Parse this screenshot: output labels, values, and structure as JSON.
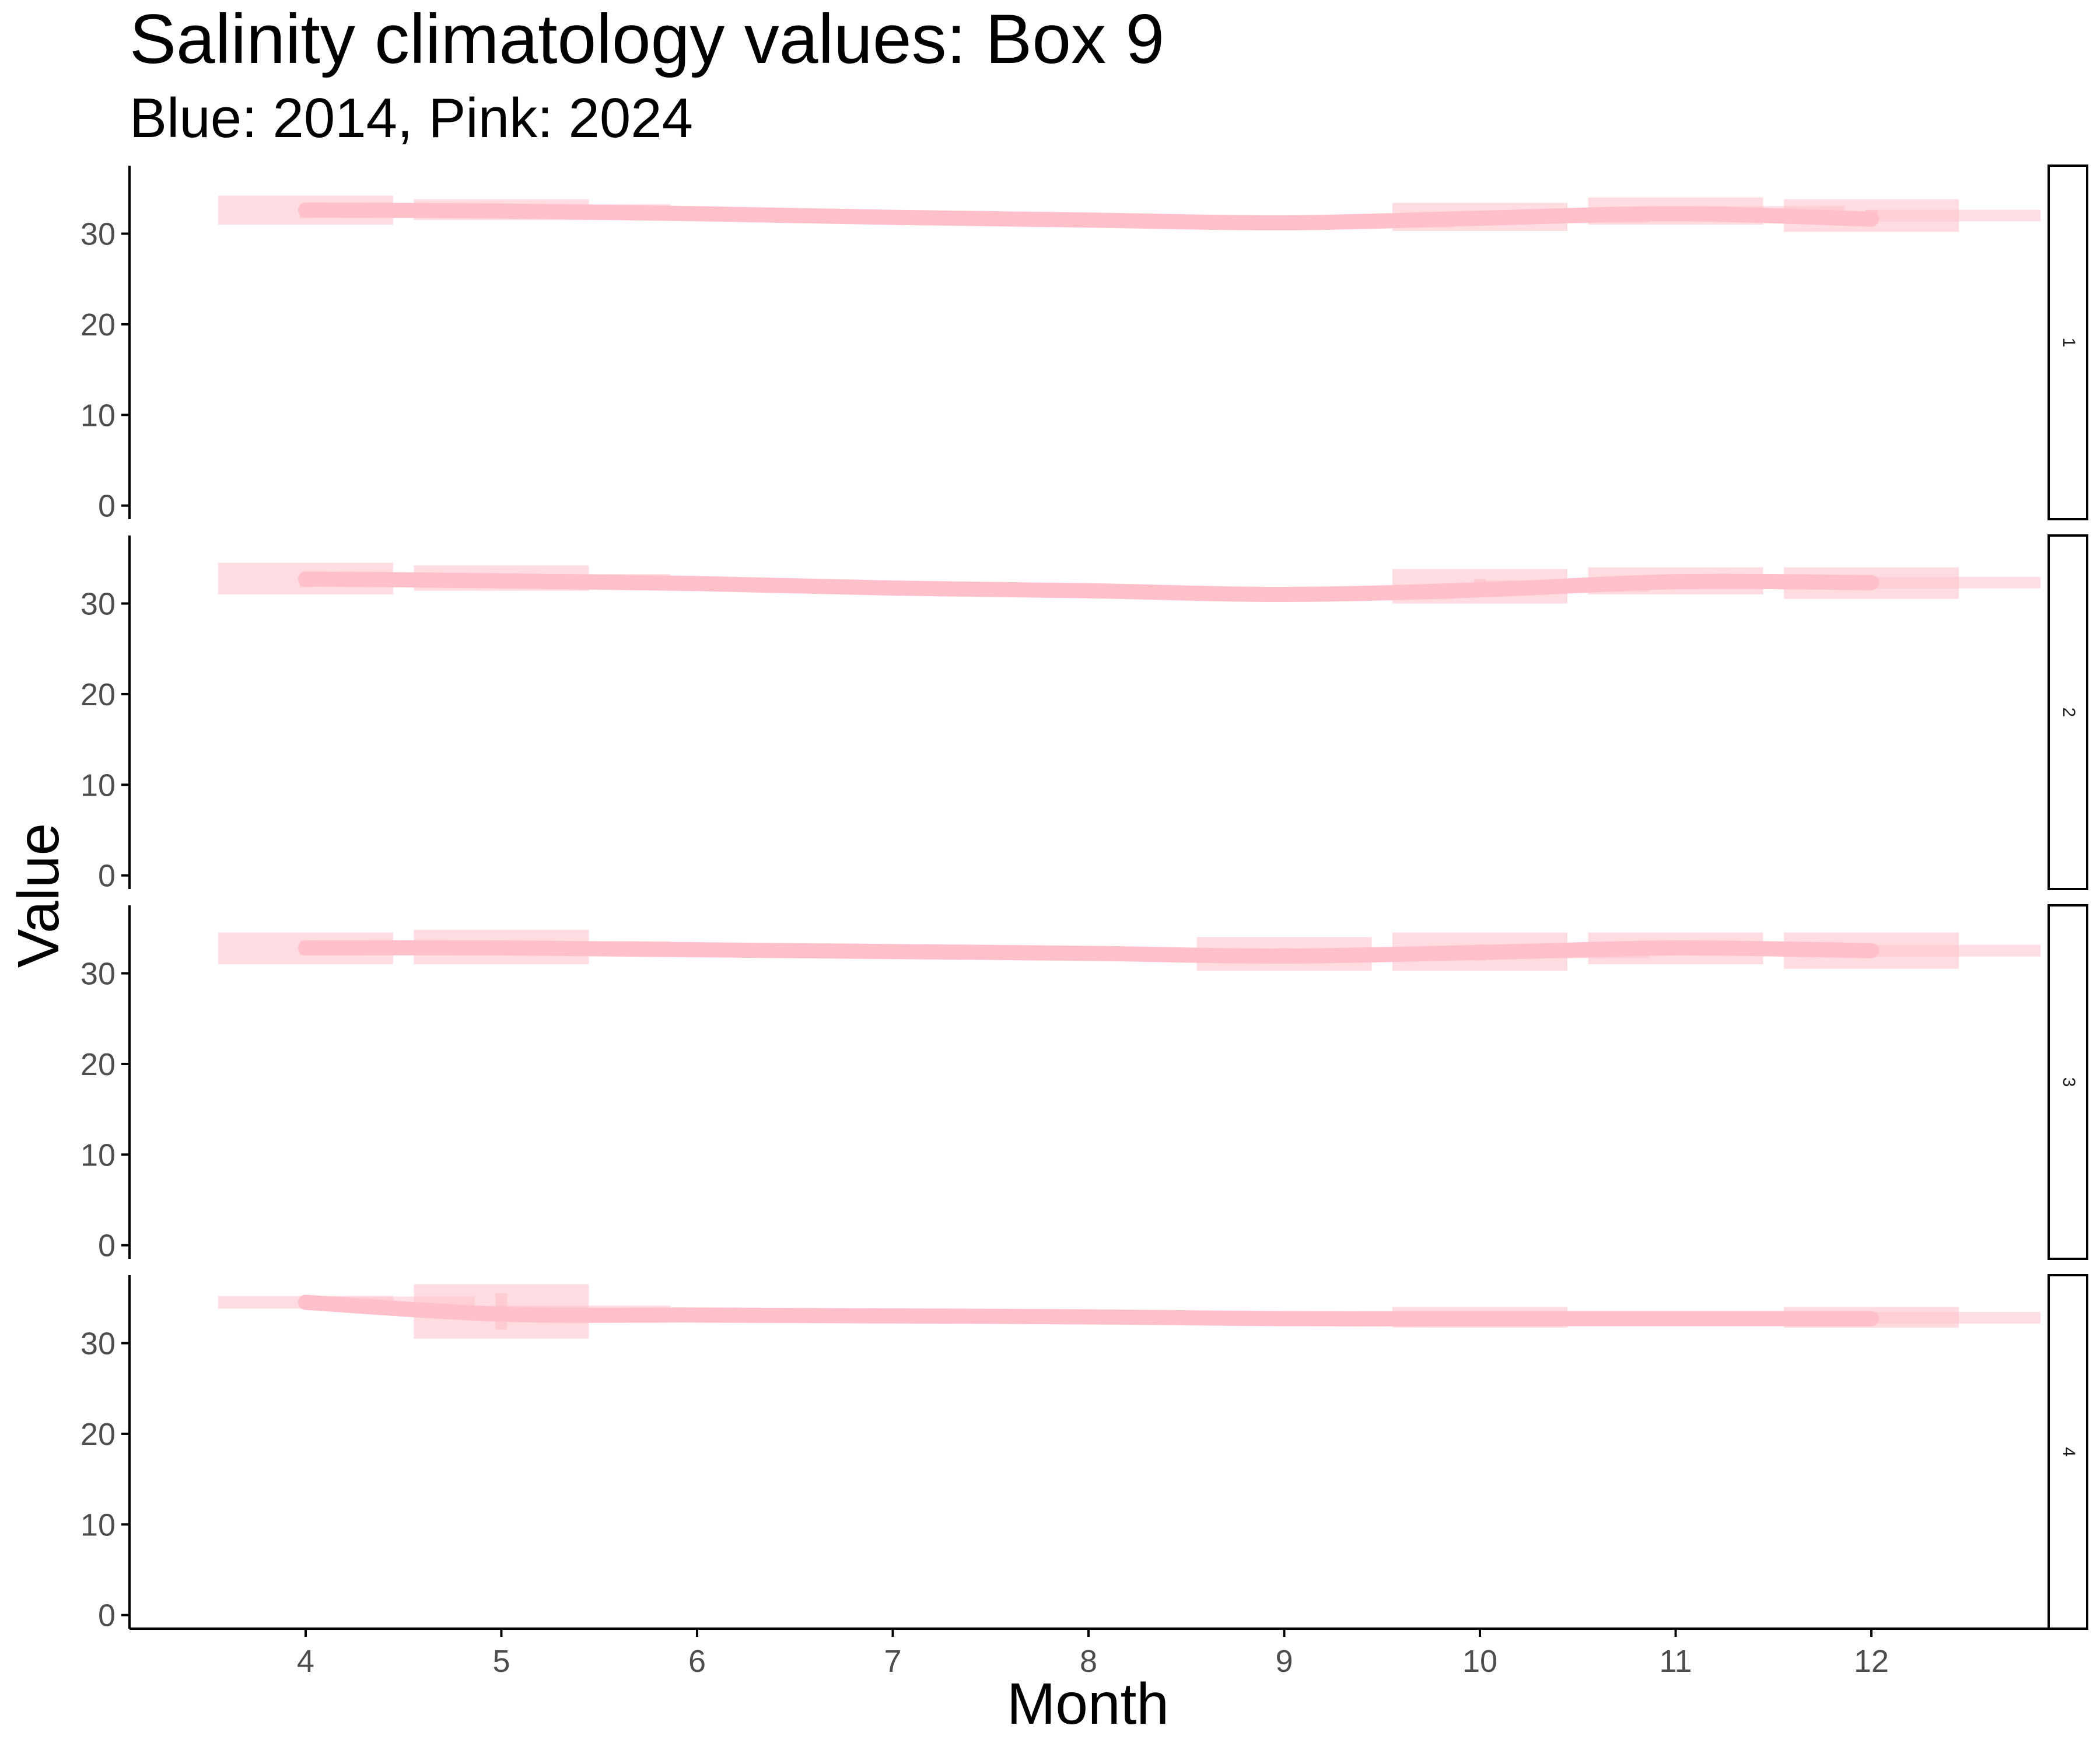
{
  "chart_data": {
    "type": "line",
    "title": "Salinity climatology values: Box 9",
    "subtitle": "Blue: 2014, Pink: 2024",
    "xlabel": "Month",
    "ylabel": "Value",
    "xlim": [
      3.1,
      12.9
    ],
    "x_ticks": [
      4,
      5,
      6,
      7,
      8,
      9,
      10,
      11,
      12
    ],
    "ylim": [
      -1.5,
      37.5
    ],
    "y_ticks": [
      0,
      10,
      20,
      30
    ],
    "grid": false,
    "legend": "none",
    "colors": {
      "line": "#ffc0cb",
      "band": "#ffc0cb",
      "axis": "#000000",
      "tick_text": "#4d4d4d"
    },
    "facets": [
      {
        "label": "1",
        "line": {
          "x": [
            4,
            5,
            6,
            7,
            8,
            9,
            10,
            11,
            12
          ],
          "y": [
            32.6,
            32.5,
            32.2,
            31.8,
            31.5,
            31.2,
            31.7,
            32.2,
            31.6
          ]
        },
        "boxes": [
          {
            "x": 4,
            "low": 31.0,
            "high": 34.2,
            "mid": 32.5,
            "error": 0.8
          },
          {
            "x": 5,
            "low": 31.5,
            "high": 33.8,
            "mid": 32.6,
            "error": 0.5
          },
          {
            "x": 9,
            "low": 31.2,
            "high": 31.6,
            "mid": 31.3,
            "error": 0.2
          },
          {
            "x": 10,
            "low": 30.3,
            "high": 33.4,
            "mid": 31.8,
            "error": 0.7
          },
          {
            "x": 11,
            "low": 31.0,
            "high": 34.0,
            "mid": 32.4,
            "error": 0.6
          },
          {
            "x": 12,
            "low": 30.2,
            "high": 33.8,
            "mid": 32.0,
            "error": 0.6
          }
        ]
      },
      {
        "label": "2",
        "line": {
          "x": [
            4,
            5,
            6,
            7,
            8,
            9,
            10,
            11,
            12
          ],
          "y": [
            32.7,
            32.5,
            32.2,
            31.7,
            31.4,
            31.0,
            31.5,
            32.4,
            32.3
          ]
        },
        "boxes": [
          {
            "x": 4,
            "low": 31.0,
            "high": 34.5,
            "mid": 32.6,
            "error": 0.8
          },
          {
            "x": 5,
            "low": 31.4,
            "high": 34.2,
            "mid": 32.6,
            "error": 0.5
          },
          {
            "x": 9,
            "low": 30.9,
            "high": 31.3,
            "mid": 31.1,
            "error": 0.2
          },
          {
            "x": 10,
            "low": 30.0,
            "high": 33.8,
            "mid": 31.9,
            "error": 0.8
          },
          {
            "x": 11,
            "low": 31.0,
            "high": 34.0,
            "mid": 32.4,
            "error": 0.6
          },
          {
            "x": 12,
            "low": 30.5,
            "high": 34.0,
            "mid": 32.3,
            "error": 0.6
          }
        ]
      },
      {
        "label": "3",
        "line": {
          "x": [
            4,
            5,
            6,
            7,
            8,
            9,
            10,
            11,
            12
          ],
          "y": [
            32.8,
            32.8,
            32.6,
            32.4,
            32.2,
            31.9,
            32.3,
            32.8,
            32.5
          ]
        },
        "boxes": [
          {
            "x": 4,
            "low": 31.0,
            "high": 34.5,
            "mid": 32.8,
            "error": 0.8
          },
          {
            "x": 5,
            "low": 31.0,
            "high": 34.8,
            "mid": 32.9,
            "error": 0.6
          },
          {
            "x": 9,
            "low": 30.3,
            "high": 34.0,
            "mid": 32.0,
            "error": 0.8
          },
          {
            "x": 10,
            "low": 30.3,
            "high": 34.5,
            "mid": 32.3,
            "error": 0.9
          },
          {
            "x": 11,
            "low": 31.0,
            "high": 34.5,
            "mid": 32.8,
            "error": 0.6
          },
          {
            "x": 12,
            "low": 30.5,
            "high": 34.5,
            "mid": 32.5,
            "error": 0.6
          }
        ]
      },
      {
        "label": "4",
        "line": {
          "x": [
            4,
            5,
            6,
            7,
            8,
            9,
            10,
            11,
            12
          ],
          "y": [
            34.5,
            33.2,
            33.1,
            33.0,
            32.9,
            32.7,
            32.7,
            32.7,
            32.7
          ]
        },
        "boxes": [
          {
            "x": 4,
            "low": 33.8,
            "high": 35.2,
            "mid": 34.5,
            "error": 0.3
          },
          {
            "x": 5,
            "low": 30.5,
            "high": 36.5,
            "mid": 33.5,
            "error": 2.0
          },
          {
            "x": 10,
            "low": 31.7,
            "high": 34.0,
            "mid": 32.8,
            "error": 0.3
          },
          {
            "x": 12,
            "low": 31.7,
            "high": 34.0,
            "mid": 32.8,
            "error": 0.3
          }
        ]
      }
    ]
  }
}
